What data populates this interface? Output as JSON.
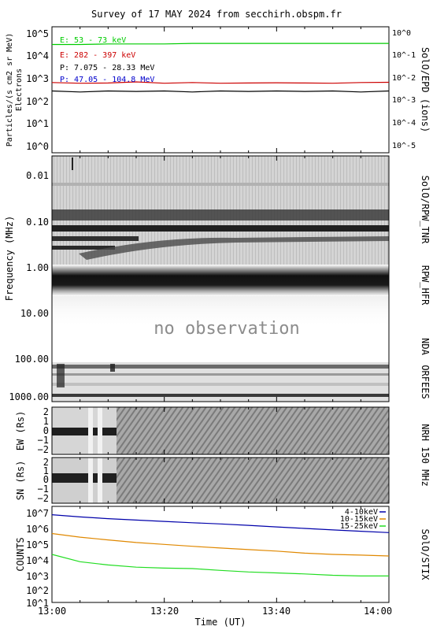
{
  "title": "Survey of 17 MAY 2024 from secchirh.obspm.fr",
  "xlabel": "Time (UT)",
  "xticks": [
    "13:00",
    "13:20",
    "13:40",
    "14:00"
  ],
  "no_observation": "no observation",
  "epd": {
    "ylabel_left_1": "Particles/(s cm2 sr MeV)",
    "ylabel_left_2": "Electrons",
    "ylabel_right": "SolO/EPD (ions)",
    "left_ticks": [
      "10^5",
      "10^4",
      "10^3",
      "10^2",
      "10^1",
      "10^0"
    ],
    "right_ticks": [
      "10^0",
      "10^-1",
      "10^-2",
      "10^-3",
      "10^-4",
      "10^-5"
    ],
    "legend": [
      {
        "label": "E: 53 - 73 keV",
        "color": "#00cc00"
      },
      {
        "label": "E: 282 - 397 keV",
        "color": "#cc0000"
      },
      {
        "label": "P: 7.075 - 28.33 MeV",
        "color": "#000000"
      },
      {
        "label": "P: 47.05 - 104.8 MeV",
        "color": "#0000cc"
      }
    ]
  },
  "spectrogram": {
    "ylabel": "Frequency (MHz)",
    "ticks": [
      "0.01",
      "0.10",
      "1.00",
      "10.00",
      "100.00",
      "1000.00"
    ],
    "instruments": [
      "SolO/RPW_TNR",
      "RPW_HFR",
      "NDA",
      "ORFEES"
    ]
  },
  "nrh": {
    "ylabel_ew": "EW (Rs)",
    "ylabel_sn": "SN (Rs)",
    "right_label": "NRH 150 MHz",
    "ticks": [
      "2",
      "1",
      "0",
      "−1",
      "−2"
    ]
  },
  "stix": {
    "ylabel": "COUNTS",
    "right_label": "SolO/STIX",
    "ticks": [
      "10^7",
      "10^6",
      "10^5",
      "10^4",
      "10^3",
      "10^2",
      "10^1"
    ]
  },
  "chart_data": {
    "type": "line",
    "x": [
      0,
      5,
      10,
      15,
      20,
      25,
      30,
      35,
      40,
      45,
      50,
      55,
      60
    ],
    "x_unit": "minutes after 13:00 UT",
    "xlim": [
      0,
      60
    ],
    "panels": [
      {
        "name": "SolO/EPD",
        "yscale": "log",
        "ylim": [
          0.5,
          100000
        ],
        "series": [
          {
            "name": "E: 53 - 73 keV",
            "color": "#00cc00",
            "values": [
              18000,
              18000,
              19000,
              19000,
              19000,
              20000,
              20000,
              20000,
              20000,
              20000,
              20000,
              20000,
              20000
            ]
          },
          {
            "name": "E: 282 - 397 keV",
            "color": "#cc0000",
            "values": [
              450,
              420,
              430,
              480,
              420,
              450,
              420,
              430,
              440,
              430,
              420,
              450,
              460
            ]
          },
          {
            "name": "P: 7.075 - 28.33 MeV",
            "color": "#000000",
            "values": [
              200,
              180,
              200,
              190,
              200,
              180,
              200,
              190,
              200,
              190,
              200,
              180,
              200
            ]
          }
        ]
      },
      {
        "name": "SolO/STIX",
        "yscale": "log",
        "ylim": [
          10,
          10000000
        ],
        "series": [
          {
            "name": "4-10keV",
            "color": "#0000aa",
            "values": [
              3000000,
              2200000,
              1700000,
              1400000,
              1150000,
              950000,
              800000,
              650000,
              520000,
              420000,
              340000,
              280000,
              230000
            ]
          },
          {
            "name": "10-15keV",
            "color": "#e08800",
            "values": [
              200000,
              120000,
              80000,
              55000,
              42000,
              32000,
              25000,
              20000,
              16000,
              12000,
              10000,
              9000,
              8000
            ]
          },
          {
            "name": "15-25keV",
            "color": "#22dd22",
            "values": [
              10000,
              3500,
              2200,
              1600,
              1400,
              1300,
              1000,
              800,
              700,
              600,
              500,
              450,
              450
            ]
          }
        ]
      }
    ]
  }
}
